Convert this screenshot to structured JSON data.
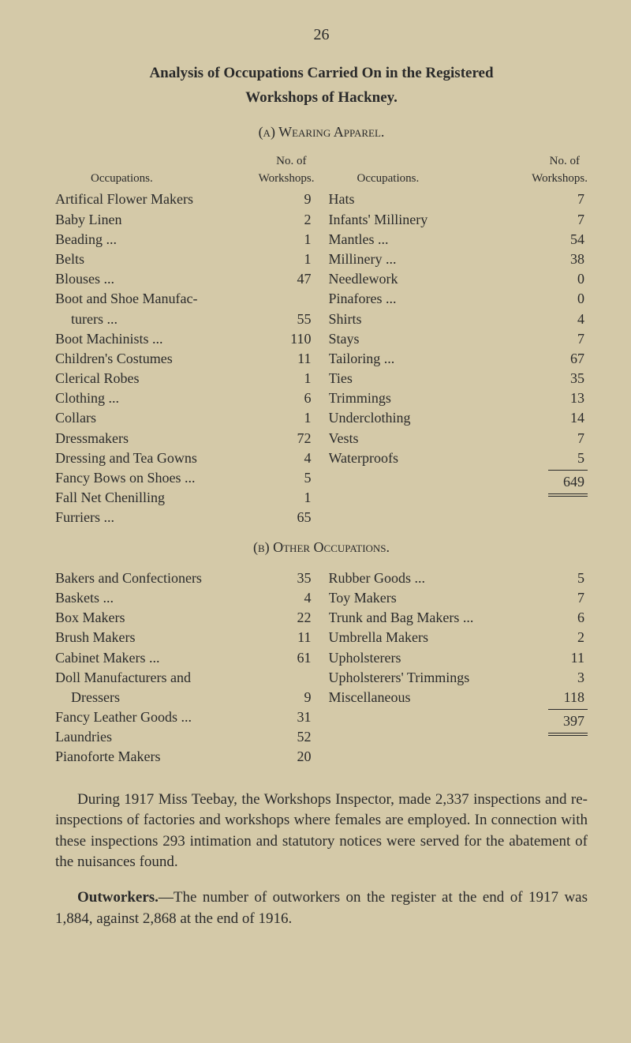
{
  "page_number": "26",
  "title_line1": "Analysis of Occupations Carried On in the Registered",
  "title_line2": "Workshops of Hackney.",
  "section_a": "(a) Wearing Apparel.",
  "section_b": "(b) Other Occupations.",
  "header_occ": "Occupations.",
  "header_no": "No. of",
  "header_workshops": "Workshops.",
  "section_a_left": [
    {
      "label": "Artifical Flower Makers",
      "num": "9"
    },
    {
      "label": "Baby Linen",
      "num": "2"
    },
    {
      "label": "Beading ...",
      "num": "1"
    },
    {
      "label": "Belts",
      "num": "1"
    },
    {
      "label": "Blouses ...",
      "num": "47"
    },
    {
      "label": "Boot and Shoe Manufac-",
      "num": ""
    },
    {
      "label": "turers ...",
      "num": "55",
      "indent": true
    },
    {
      "label": "Boot Machinists ...",
      "num": "110"
    },
    {
      "label": "Children's Costumes",
      "num": "11"
    },
    {
      "label": "Clerical Robes",
      "num": "1"
    },
    {
      "label": "Clothing ...",
      "num": "6"
    },
    {
      "label": "Collars",
      "num": "1"
    },
    {
      "label": "Dressmakers",
      "num": "72"
    },
    {
      "label": "Dressing and Tea Gowns",
      "num": "4"
    },
    {
      "label": "Fancy Bows on Shoes ...",
      "num": "5"
    },
    {
      "label": "Fall Net Chenilling",
      "num": "1"
    },
    {
      "label": "Furriers ...",
      "num": "65"
    }
  ],
  "section_a_right": [
    {
      "label": "Hats",
      "num": "7"
    },
    {
      "label": "Infants' Millinery",
      "num": "7"
    },
    {
      "label": "Mantles ...",
      "num": "54"
    },
    {
      "label": "Millinery ...",
      "num": "38"
    },
    {
      "label": "Needlework",
      "num": "0"
    },
    {
      "label": "Pinafores ...",
      "num": "0"
    },
    {
      "label": "Shirts",
      "num": "4"
    },
    {
      "label": "Stays",
      "num": "7"
    },
    {
      "label": "Tailoring ...",
      "num": "67"
    },
    {
      "label": "Ties",
      "num": "35"
    },
    {
      "label": "Trimmings",
      "num": "13"
    },
    {
      "label": "Underclothing",
      "num": "14"
    },
    {
      "label": "Vests",
      "num": "7"
    },
    {
      "label": "Waterproofs",
      "num": "5"
    }
  ],
  "section_a_total": "649",
  "section_b_left": [
    {
      "label": "Bakers and Confectioners",
      "num": "35"
    },
    {
      "label": "Baskets ...",
      "num": "4"
    },
    {
      "label": "Box Makers",
      "num": "22"
    },
    {
      "label": "Brush Makers",
      "num": "11"
    },
    {
      "label": "Cabinet Makers ...",
      "num": "61"
    },
    {
      "label": "Doll Manufacturers and",
      "num": ""
    },
    {
      "label": "Dressers",
      "num": "9",
      "indent": true
    },
    {
      "label": "Fancy Leather Goods ...",
      "num": "31"
    },
    {
      "label": "Laundries",
      "num": "52"
    },
    {
      "label": "Pianoforte Makers",
      "num": "20"
    }
  ],
  "section_b_right": [
    {
      "label": "Rubber Goods ...",
      "num": "5"
    },
    {
      "label": "Toy Makers",
      "num": "7"
    },
    {
      "label": "Trunk and Bag Makers ...",
      "num": "6"
    },
    {
      "label": "Umbrella Makers",
      "num": "2"
    },
    {
      "label": "Upholsterers",
      "num": "11"
    },
    {
      "label": "Upholsterers' Trimmings",
      "num": "3"
    },
    {
      "label": "Miscellaneous",
      "num": "118"
    }
  ],
  "section_b_total": "397",
  "para1": "During 1917 Miss Teebay, the Workshops Inspector, made 2,337 inspections and re-inspections of factories and workshops where females are employed. In connection with these inspections 293 intimation and statutory notices were served for the abatement of the nuisances found.",
  "para2_bold": "Outworkers.",
  "para2_rest": "—The number of outworkers on the register at the end of 1917 was 1,884, against 2,868 at the end of 1916."
}
